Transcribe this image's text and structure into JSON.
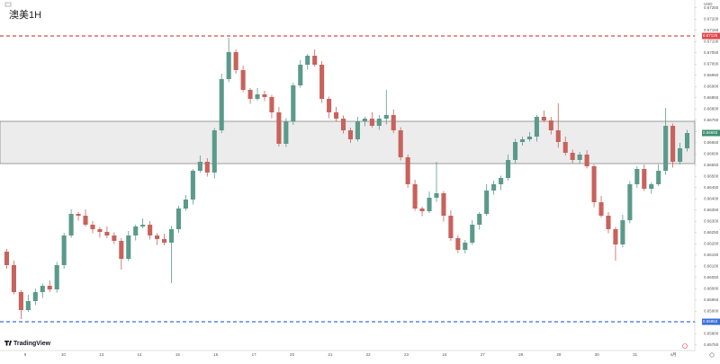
{
  "chart_data": {
    "type": "candlestick",
    "title": "澳美1H",
    "currency": "USD",
    "brand": "TradingView",
    "x_labels": [
      "9",
      "10",
      "13",
      "14",
      "15",
      "16",
      "17",
      "20",
      "21",
      "22",
      "23",
      "24",
      "27",
      "28",
      "29",
      "30",
      "31",
      "4月"
    ],
    "open": [
      0.66165,
      0.66105,
      0.65985,
      0.65905,
      0.65945,
      0.65985,
      0.66013,
      0.65997,
      0.66105,
      0.66237,
      0.66333,
      0.66325,
      0.66285,
      0.66265,
      0.66253,
      0.66237,
      0.66213,
      0.66133,
      0.66237,
      0.66277,
      0.66285,
      0.66237,
      0.66221,
      0.66205,
      0.66265,
      0.66357,
      0.66397,
      0.66525,
      0.66565,
      0.66517,
      0.66705,
      0.66933,
      0.67053,
      0.66973,
      0.66885,
      0.66845,
      0.66865,
      0.66853,
      0.66785,
      0.66645,
      0.66745,
      0.66905,
      0.66997,
      0.67037,
      0.66997,
      0.66845,
      0.66785,
      0.66757,
      0.66705,
      0.66665,
      0.66745,
      0.66757,
      0.66725,
      0.66757,
      0.66773,
      0.66705,
      0.66585,
      0.66465,
      0.66357,
      0.66345,
      0.66405,
      0.66425,
      0.66325,
      0.66225,
      0.66173,
      0.66205,
      0.66285,
      0.66333,
      0.66437,
      0.66465,
      0.66493,
      0.66573,
      0.66653,
      0.66665,
      0.66677,
      0.66765,
      0.66749,
      0.66705,
      0.66653,
      0.66605,
      0.66573,
      0.66597,
      0.66545,
      0.66385,
      0.66325,
      0.66265,
      0.66197,
      0.66305,
      0.66465,
      0.66533,
      0.66445,
      0.66465,
      0.66525,
      0.66725,
      0.66565,
      0.66625
    ],
    "high": [
      0.66177,
      0.66125,
      0.65993,
      0.65973,
      0.66001,
      0.66023,
      0.66037,
      0.66119,
      0.66249,
      0.66353,
      0.66341,
      0.66353,
      0.66301,
      0.66275,
      0.66277,
      0.66251,
      0.66225,
      0.66257,
      0.66285,
      0.66313,
      0.66301,
      0.66247,
      0.66245,
      0.66279,
      0.66369,
      0.66417,
      0.66533,
      0.66593,
      0.66581,
      0.66715,
      0.66957,
      0.67117,
      0.67065,
      0.66993,
      0.66893,
      0.66893,
      0.66881,
      0.66863,
      0.66809,
      0.66759,
      0.66917,
      0.67017,
      0.67045,
      0.67065,
      0.67013,
      0.66855,
      0.66809,
      0.66771,
      0.66717,
      0.66765,
      0.66765,
      0.66785,
      0.66773,
      0.66885,
      0.66797,
      0.66719,
      0.66597,
      0.66485,
      0.66365,
      0.66433,
      0.66565,
      0.66435,
      0.66349,
      0.66239,
      0.66217,
      0.66305,
      0.66341,
      0.66465,
      0.66481,
      0.66503,
      0.66597,
      0.66667,
      0.66677,
      0.66697,
      0.66773,
      0.66793,
      0.66765,
      0.66825,
      0.66677,
      0.66619,
      0.66609,
      0.66617,
      0.66553,
      0.66413,
      0.66341,
      0.66275,
      0.66329,
      0.66479,
      0.66545,
      0.66553,
      0.66473,
      0.66553,
      0.66805,
      0.66735,
      0.66649,
      0.66707
    ],
    "low": [
      0.66089,
      0.65975,
      0.65865,
      0.65897,
      0.65927,
      0.65959,
      0.65985,
      0.65983,
      0.66089,
      0.66227,
      0.66303,
      0.66277,
      0.66247,
      0.66227,
      0.66225,
      0.66199,
      0.66085,
      0.66123,
      0.66215,
      0.66269,
      0.66219,
      0.66195,
      0.66193,
      0.66025,
      0.66249,
      0.66347,
      0.66375,
      0.66517,
      0.66499,
      0.66491,
      0.66693,
      0.66919,
      0.66957,
      0.66875,
      0.66823,
      0.66837,
      0.66835,
      0.66759,
      0.66633,
      0.66631,
      0.66729,
      0.66895,
      0.66975,
      0.66989,
      0.66827,
      0.66759,
      0.66745,
      0.66691,
      0.66649,
      0.66655,
      0.66723,
      0.66717,
      0.66707,
      0.66731,
      0.66693,
      0.66571,
      0.66449,
      0.66347,
      0.66323,
      0.66337,
      0.66387,
      0.66299,
      0.66213,
      0.66159,
      0.66157,
      0.66195,
      0.66263,
      0.66325,
      0.66419,
      0.66439,
      0.66481,
      0.66559,
      0.66637,
      0.66655,
      0.66655,
      0.66741,
      0.66687,
      0.66627,
      0.66593,
      0.66559,
      0.66557,
      0.66535,
      0.66363,
      0.66317,
      0.66247,
      0.66125,
      0.66185,
      0.66291,
      0.66449,
      0.66435,
      0.66423,
      0.66457,
      0.66507,
      0.66539,
      0.66553,
      0.66611
    ],
    "close": [
      0.66105,
      0.65985,
      0.65905,
      0.65945,
      0.65985,
      0.66013,
      0.65997,
      0.66105,
      0.66237,
      0.66333,
      0.66325,
      0.66285,
      0.66265,
      0.66253,
      0.66237,
      0.66213,
      0.66133,
      0.66237,
      0.66277,
      0.66285,
      0.66237,
      0.66221,
      0.66205,
      0.66265,
      0.66357,
      0.66397,
      0.66525,
      0.66565,
      0.66517,
      0.66705,
      0.66933,
      0.67053,
      0.66973,
      0.66885,
      0.66845,
      0.66865,
      0.66853,
      0.66785,
      0.66645,
      0.66745,
      0.66905,
      0.66997,
      0.67037,
      0.66997,
      0.66845,
      0.66785,
      0.66757,
      0.66705,
      0.66665,
      0.66745,
      0.66757,
      0.66725,
      0.66757,
      0.66773,
      0.66705,
      0.66585,
      0.66465,
      0.66357,
      0.66345,
      0.66405,
      0.66425,
      0.66325,
      0.66225,
      0.66173,
      0.66205,
      0.66285,
      0.66333,
      0.66437,
      0.66465,
      0.66493,
      0.66573,
      0.66653,
      0.66665,
      0.66677,
      0.66765,
      0.66749,
      0.66705,
      0.66653,
      0.66605,
      0.66573,
      0.66597,
      0.66545,
      0.66385,
      0.66325,
      0.66265,
      0.66197,
      0.66305,
      0.66465,
      0.66533,
      0.66445,
      0.66465,
      0.66525,
      0.66725,
      0.66565,
      0.66625,
      0.66693
    ],
    "up_color": "#5b9a8b",
    "down_color": "#c8625c",
    "ylim": [
      0.65725,
      0.67285
    ],
    "yticks": [
      {
        "value": 0.6575,
        "label": "0.65750"
      },
      {
        "value": 0.658,
        "label": "0.65800"
      },
      {
        "value": 0.6585,
        "label": "0.65850"
      },
      {
        "value": 0.659,
        "label": "0.65900"
      },
      {
        "value": 0.6595,
        "label": "0.65950"
      },
      {
        "value": 0.66,
        "label": "0.66000"
      },
      {
        "value": 0.6605,
        "label": "0.66050"
      },
      {
        "value": 0.661,
        "label": "0.66100"
      },
      {
        "value": 0.6615,
        "label": "0.66150"
      },
      {
        "value": 0.662,
        "label": "0.66200"
      },
      {
        "value": 0.6625,
        "label": "0.66250"
      },
      {
        "value": 0.663,
        "label": "0.66300"
      },
      {
        "value": 0.6635,
        "label": "0.66350"
      },
      {
        "value": 0.664,
        "label": "0.66400"
      },
      {
        "value": 0.6645,
        "label": "0.66450"
      },
      {
        "value": 0.665,
        "label": "0.66500"
      },
      {
        "value": 0.6655,
        "label": "0.66550"
      },
      {
        "value": 0.666,
        "label": "0.66600"
      },
      {
        "value": 0.6665,
        "label": "0.66650"
      },
      {
        "value": 0.667,
        "label": "0.66700"
      },
      {
        "value": 0.6675,
        "label": "0.66750"
      },
      {
        "value": 0.668,
        "label": "0.66800"
      },
      {
        "value": 0.6685,
        "label": "0.66850"
      },
      {
        "value": 0.669,
        "label": "0.66900"
      },
      {
        "value": 0.6695,
        "label": "0.66950"
      },
      {
        "value": 0.67,
        "label": "0.67000"
      },
      {
        "value": 0.6705,
        "label": "0.67050"
      },
      {
        "value": 0.671,
        "label": "0.67100"
      },
      {
        "value": 0.6715,
        "label": "0.67150"
      },
      {
        "value": 0.672,
        "label": "0.67200"
      },
      {
        "value": 0.6725,
        "label": "0.67250"
      }
    ],
    "levels": [
      {
        "value": 0.67125,
        "color": "#e0474c"
      },
      {
        "value": 0.65853,
        "color": "#3a6fd8"
      }
    ],
    "zone": [
      0.66557,
      0.66745
    ],
    "zone_color": "#e4e4e4",
    "last_color": "#3f8f6f"
  }
}
